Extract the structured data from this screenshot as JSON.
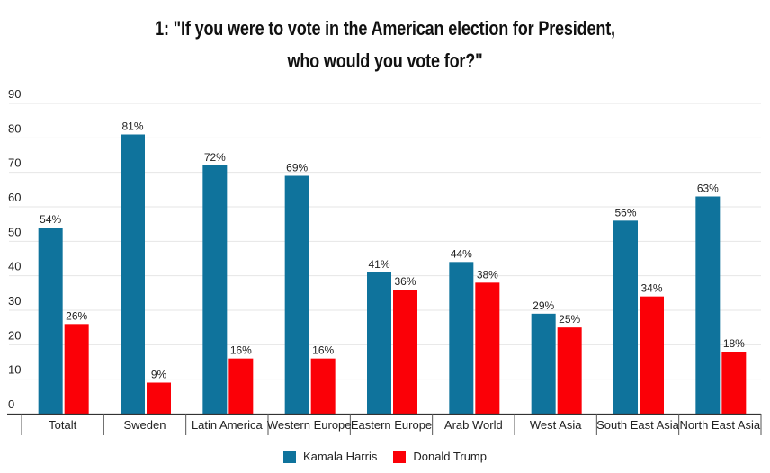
{
  "chart_data": {
    "type": "bar",
    "title": "1: \"If you were to vote in the American election for President,",
    "title_line2": "who would you vote for?\"",
    "xlabel": "",
    "ylabel": "",
    "ylim": [
      0,
      90
    ],
    "yticks": [
      "0",
      "10",
      "20",
      "30",
      "40",
      "50",
      "60",
      "70",
      "80",
      "90"
    ],
    "grid": true,
    "legend_position": "bottom",
    "categories": [
      "Totalt",
      "Sweden",
      "Latin America",
      "Western Europe",
      "Eastern Europe",
      "Arab World",
      "West Asia",
      "South East Asia",
      "North East Asia"
    ],
    "series": [
      {
        "name": "Kamala Harris",
        "color": "#0f739c",
        "values": [
          54,
          81,
          72,
          69,
          41,
          44,
          29,
          56,
          63
        ],
        "labels": [
          "54%",
          "81%",
          "72%",
          "69%",
          "41%",
          "44%",
          "29%",
          "56%",
          "63%"
        ]
      },
      {
        "name": "Donald Trump",
        "color": "#fb0007",
        "values": [
          26,
          9,
          16,
          16,
          36,
          38,
          25,
          34,
          18
        ],
        "labels": [
          "26%",
          "9%",
          "16%",
          "16%",
          "36%",
          "38%",
          "25%",
          "34%",
          "18%"
        ]
      }
    ]
  }
}
